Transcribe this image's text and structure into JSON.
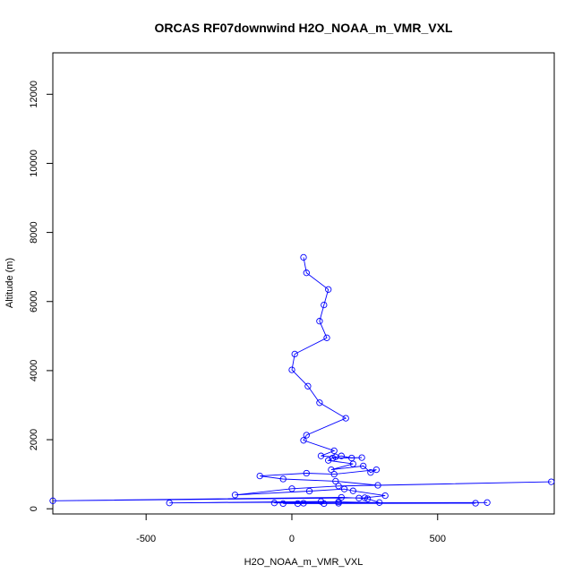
{
  "chart_data": {
    "type": "line",
    "title": "ORCAS RF07downwind H2O_NOAA_m_VMR_VXL",
    "xlabel": "H2O_NOAA_m_VMR_VXL",
    "ylabel": "Altitude (m)",
    "xlim": [
      -820,
      900
    ],
    "ylim": [
      -150,
      13200
    ],
    "x_ticks": [
      -500,
      0,
      500
    ],
    "y_ticks": [
      0,
      2000,
      4000,
      6000,
      8000,
      10000,
      12000
    ],
    "x_tick_labels": [
      "-500",
      "0",
      "500"
    ],
    "y_tick_labels": [
      "0",
      "2000",
      "4000",
      "6000",
      "8000",
      "10000",
      "12000"
    ],
    "grid": false,
    "line_color": "#0000ff",
    "series": [
      {
        "points": [
          [
            40,
            7280
          ],
          [
            50,
            6830
          ],
          [
            125,
            6350
          ],
          [
            110,
            5900
          ],
          [
            95,
            5430
          ],
          [
            120,
            4950
          ],
          [
            10,
            4480
          ],
          [
            0,
            4020
          ],
          [
            55,
            3550
          ],
          [
            95,
            3070
          ],
          [
            185,
            2620
          ],
          [
            50,
            2130
          ],
          [
            40,
            1980
          ],
          [
            145,
            1680
          ],
          [
            100,
            1530
          ],
          [
            150,
            1500
          ],
          [
            170,
            1530
          ],
          [
            205,
            1470
          ],
          [
            240,
            1480
          ],
          [
            140,
            1470
          ],
          [
            125,
            1400
          ],
          [
            210,
            1300
          ],
          [
            135,
            1130
          ],
          [
            245,
            1240
          ],
          [
            270,
            1050
          ],
          [
            290,
            1130
          ],
          [
            145,
            1000
          ],
          [
            50,
            1030
          ],
          [
            -110,
            950
          ],
          [
            -30,
            860
          ],
          [
            150,
            800
          ],
          [
            295,
            680
          ],
          [
            890,
            780
          ],
          [
            160,
            660
          ],
          [
            0,
            580
          ],
          [
            -195,
            400
          ],
          [
            60,
            510
          ],
          [
            180,
            570
          ],
          [
            210,
            520
          ],
          [
            320,
            380
          ],
          [
            250,
            320
          ],
          [
            -820,
            230
          ],
          [
            170,
            330
          ],
          [
            230,
            310
          ],
          [
            260,
            290
          ],
          [
            300,
            180
          ],
          [
            160,
            200
          ],
          [
            -420,
            170
          ],
          [
            100,
            210
          ],
          [
            110,
            150
          ],
          [
            670,
            180
          ],
          [
            -60,
            170
          ],
          [
            160,
            160
          ],
          [
            20,
            150
          ],
          [
            630,
            160
          ],
          [
            -30,
            150
          ],
          [
            40,
            160
          ]
        ]
      }
    ]
  }
}
